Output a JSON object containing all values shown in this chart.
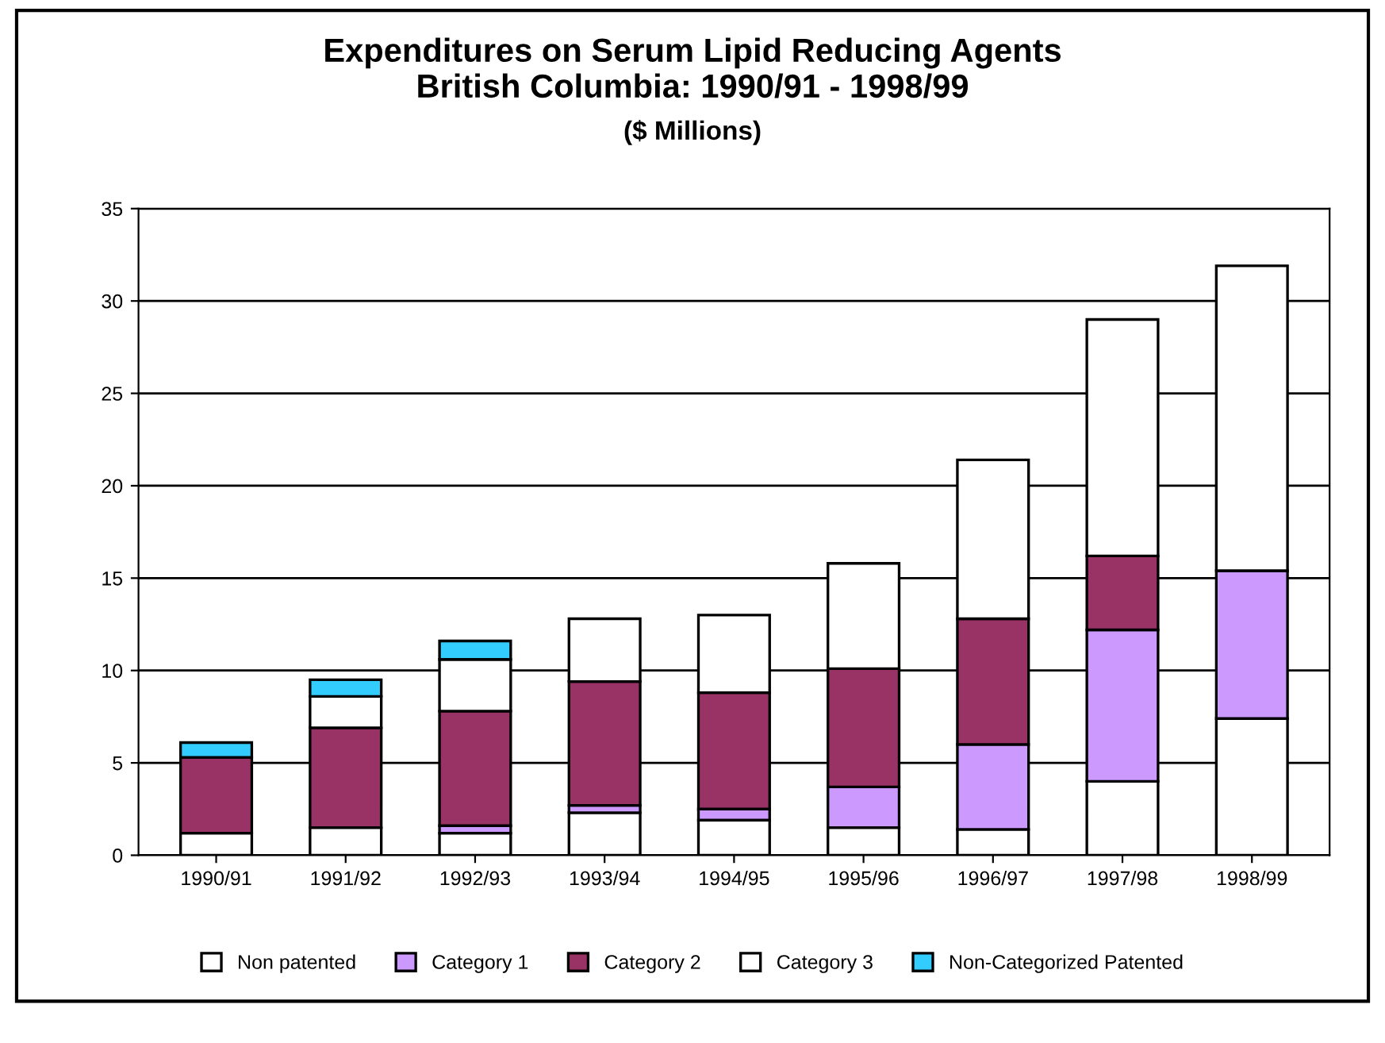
{
  "chart_data": {
    "type": "bar",
    "stacked": true,
    "title": "Expenditures on Serum Lipid Reducing Agents\nBritish Columbia: 1990/91 - 1998/99",
    "subtitle": "($ Millions)",
    "categories": [
      "1990/91",
      "1991/92",
      "1992/93",
      "1993/94",
      "1994/95",
      "1995/96",
      "1996/97",
      "1997/98",
      "1998/99"
    ],
    "series": [
      {
        "name": "Non patented",
        "color": "#ffffff",
        "values": [
          1.2,
          1.5,
          1.2,
          2.3,
          1.9,
          1.5,
          1.4,
          4.0,
          7.4
        ]
      },
      {
        "name": "Category 1",
        "color": "#cc99ff",
        "values": [
          null,
          null,
          0.4,
          0.4,
          0.6,
          2.2,
          4.6,
          8.2,
          8.0
        ]
      },
      {
        "name": "Category 2",
        "color": "#993366",
        "values": [
          4.1,
          5.4,
          6.2,
          6.7,
          6.3,
          6.4,
          6.8,
          4.0,
          null
        ]
      },
      {
        "name": "Category 3",
        "color": "#ffffff",
        "values": [
          null,
          1.7,
          2.8,
          3.4,
          4.2,
          5.7,
          8.6,
          12.8,
          16.5
        ]
      },
      {
        "name": "Non-Categorized Patented",
        "color": "#33ccff",
        "values": [
          0.8,
          0.9,
          1.0,
          null,
          null,
          null,
          null,
          null,
          null
        ]
      }
    ],
    "ylim": [
      0,
      35
    ],
    "yticks": [
      0,
      5,
      10,
      15,
      20,
      25,
      30,
      35
    ],
    "grid": "y",
    "legend": "bottom"
  }
}
